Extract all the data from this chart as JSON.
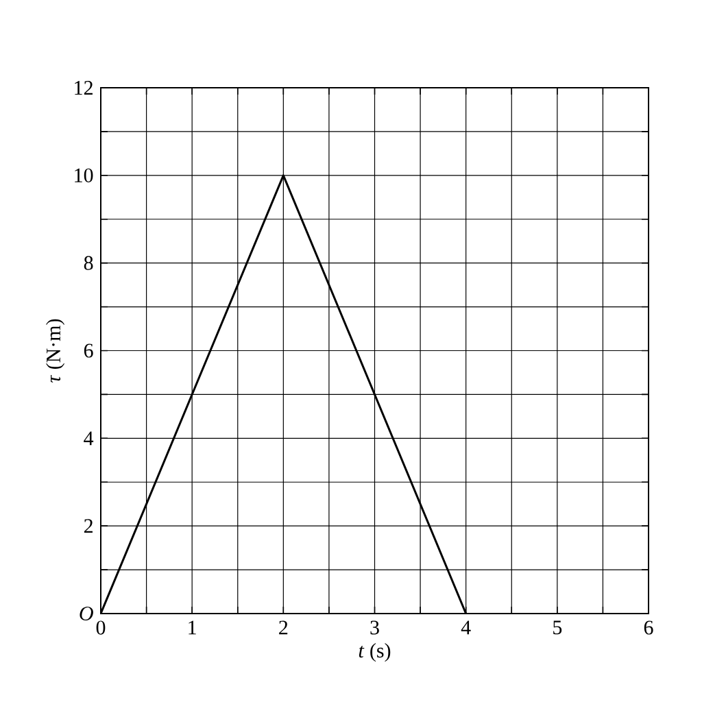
{
  "chart_data": {
    "type": "line",
    "xlabel": "*t* (s)",
    "ylabel": "*τ* (N·m)",
    "x": [
      0,
      2,
      4
    ],
    "series": [
      {
        "color": "#000000",
        "values": [
          0,
          10,
          0
        ]
      }
    ],
    "xlim": [
      0,
      6
    ],
    "ylim": [
      0,
      12
    ],
    "xticks": [
      0,
      {
        "value": 0.5,
        "label": null
      },
      1,
      {
        "value": 1.5,
        "label": null
      },
      2,
      {
        "value": 2.5,
        "label": null
      },
      3,
      {
        "value": 3.5,
        "label": null
      },
      4,
      {
        "value": 4.5,
        "label": null
      },
      5,
      {
        "value": 5.5,
        "label": null
      },
      6
    ],
    "yticks": [
      {
        "value": 0,
        "label": "*O*"
      },
      {
        "value": 1,
        "label": null
      },
      2,
      {
        "value": 3,
        "label": null
      },
      4,
      {
        "value": 5,
        "label": null
      },
      6,
      {
        "value": 7,
        "label": null
      },
      8,
      {
        "value": 9,
        "label": null
      },
      10,
      {
        "value": 11,
        "label": null
      },
      12
    ],
    "grid": true,
    "marker": "none",
    "line_style": "solid"
  }
}
